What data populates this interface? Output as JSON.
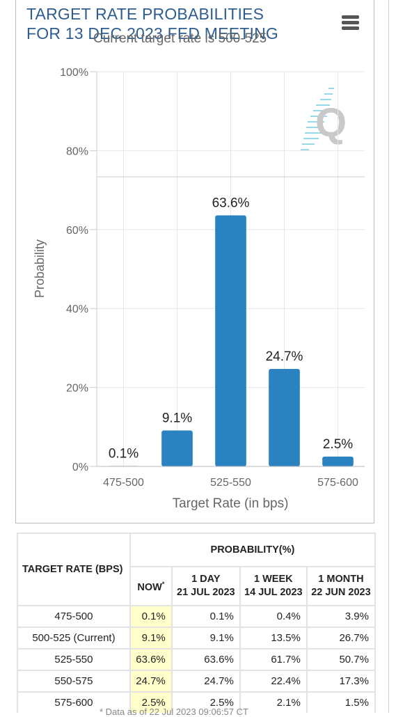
{
  "header": {
    "title_line1": "TARGET RATE PROBABILITIES",
    "title_line2": "FOR 13 DEC 2023 FED MEETING",
    "subtitle": "Current target rate is 500-525"
  },
  "chart_data": {
    "type": "bar",
    "categories": [
      "475-500",
      "500-525",
      "525-550",
      "550-575",
      "575-600"
    ],
    "x_tick_labels_shown": [
      "475-500",
      "",
      "525-550",
      "",
      "575-600"
    ],
    "values": [
      0.1,
      9.1,
      63.6,
      24.7,
      2.5
    ],
    "data_labels": [
      "0.1%",
      "9.1%",
      "63.6%",
      "24.7%",
      "2.5%"
    ],
    "title": "TARGET RATE PROBABILITIES FOR 13 DEC 2023 FED MEETING",
    "subtitle": "Current target rate is 500-525",
    "xlabel": "Target Rate (in bps)",
    "ylabel": "Probability",
    "ylim": [
      0,
      100
    ],
    "y_ticks": [
      0,
      20,
      40,
      60,
      80,
      100
    ],
    "y_tick_labels": [
      "0%",
      "20%",
      "40%",
      "60%",
      "80%",
      "100%"
    ],
    "grid": true,
    "bar_color": "#2b82c0"
  },
  "table": {
    "target_header": "TARGET RATE (BPS)",
    "probability_header": "PROBABILITY(%)",
    "columns": [
      {
        "line1": "NOW",
        "line2": "",
        "mark": "*"
      },
      {
        "line1": "1 DAY",
        "line2": "21 JUL 2023",
        "mark": ""
      },
      {
        "line1": "1 WEEK",
        "line2": "14 JUL 2023",
        "mark": ""
      },
      {
        "line1": "1 MONTH",
        "line2": "22 JUN 2023",
        "mark": ""
      }
    ],
    "rows": [
      {
        "rate": "475-500",
        "values": [
          "0.1%",
          "0.1%",
          "0.4%",
          "3.9%"
        ]
      },
      {
        "rate": "500-525 (Current)",
        "values": [
          "9.1%",
          "9.1%",
          "13.5%",
          "26.7%"
        ]
      },
      {
        "rate": "525-550",
        "values": [
          "63.6%",
          "63.6%",
          "61.7%",
          "50.7%"
        ]
      },
      {
        "rate": "550-575",
        "values": [
          "24.7%",
          "24.7%",
          "22.4%",
          "17.3%"
        ]
      },
      {
        "rate": "575-600",
        "values": [
          "2.5%",
          "2.5%",
          "2.1%",
          "1.5%"
        ]
      }
    ],
    "now_highlight_color": "#ffffcc"
  },
  "footnote": "* Data as of 22 Jul 2023 09:06:57 CT",
  "icons": {
    "menu": "hamburger-menu-icon",
    "watermark": "quikstrike-q-logo"
  }
}
